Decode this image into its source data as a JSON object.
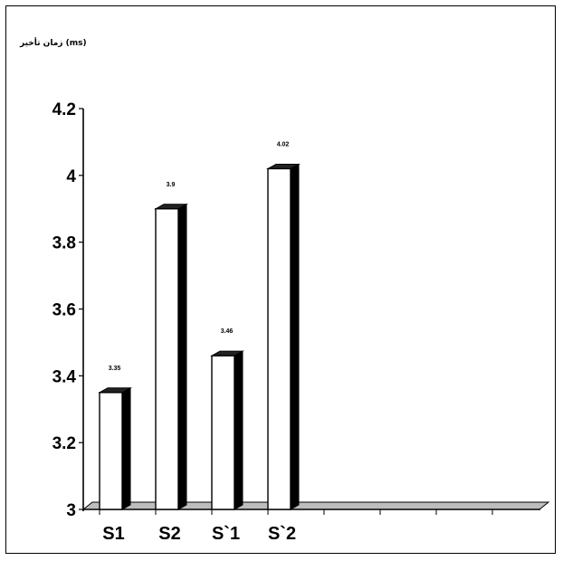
{
  "chart_data": {
    "type": "bar",
    "title": "",
    "ylabel": "زمان تأخير (ms)",
    "xlabel": "",
    "categories": [
      "S1",
      "S2",
      "S`1",
      "S`2"
    ],
    "values": [
      3.35,
      3.9,
      3.46,
      4.02
    ],
    "data_labels": [
      "3.35",
      "3.9",
      "3.46",
      "4.02"
    ],
    "y_ticks": [
      "3",
      "3.2",
      "3.4",
      "3.6",
      "3.8",
      "4",
      "4.2"
    ],
    "ylim": [
      3,
      4.2
    ],
    "grid": false,
    "legend": "none",
    "bar_face_color": "#ffffff",
    "bar_side_color": "#000000"
  }
}
